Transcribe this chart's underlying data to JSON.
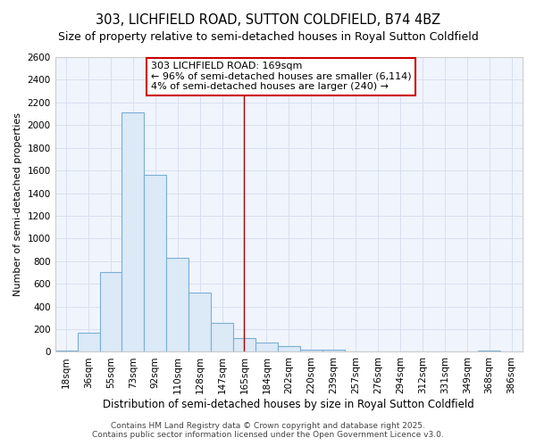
{
  "title": "303, LICHFIELD ROAD, SUTTON COLDFIELD, B74 4BZ",
  "subtitle": "Size of property relative to semi-detached houses in Royal Sutton Coldfield",
  "xlabel": "Distribution of semi-detached houses by size in Royal Sutton Coldfield",
  "ylabel": "Number of semi-detached properties",
  "categories": [
    "18sqm",
    "36sqm",
    "55sqm",
    "73sqm",
    "92sqm",
    "110sqm",
    "128sqm",
    "147sqm",
    "165sqm",
    "184sqm",
    "202sqm",
    "220sqm",
    "239sqm",
    "257sqm",
    "276sqm",
    "294sqm",
    "312sqm",
    "331sqm",
    "349sqm",
    "368sqm",
    "386sqm"
  ],
  "values": [
    10,
    170,
    700,
    2110,
    1560,
    830,
    520,
    255,
    125,
    80,
    50,
    20,
    20,
    0,
    0,
    0,
    0,
    0,
    0,
    15,
    0
  ],
  "bar_color": "#dce9f7",
  "bar_edge_color": "#7aafd4",
  "vline_x_idx": 8,
  "vline_color": "#aa0000",
  "annotation_line1": "303 LICHFIELD ROAD: 169sqm",
  "annotation_line2": "← 96% of semi-detached houses are smaller (6,114)",
  "annotation_line3": "4% of semi-detached houses are larger (240) →",
  "annotation_box_color": "#ffffff",
  "annotation_box_edge_color": "#cc0000",
  "ylim": [
    0,
    2600
  ],
  "yticks": [
    0,
    200,
    400,
    600,
    800,
    1000,
    1200,
    1400,
    1600,
    1800,
    2000,
    2200,
    2400,
    2600
  ],
  "fig_bg_color": "#ffffff",
  "plot_bg_color": "#f0f4fc",
  "grid_color": "#d8dff0",
  "footer1": "Contains HM Land Registry data © Crown copyright and database right 2025.",
  "footer2": "Contains public sector information licensed under the Open Government Licence v3.0.",
  "title_fontsize": 10.5,
  "subtitle_fontsize": 9,
  "xlabel_fontsize": 8.5,
  "ylabel_fontsize": 8,
  "tick_fontsize": 7.5,
  "annot_fontsize": 8,
  "footer_fontsize": 6.5
}
